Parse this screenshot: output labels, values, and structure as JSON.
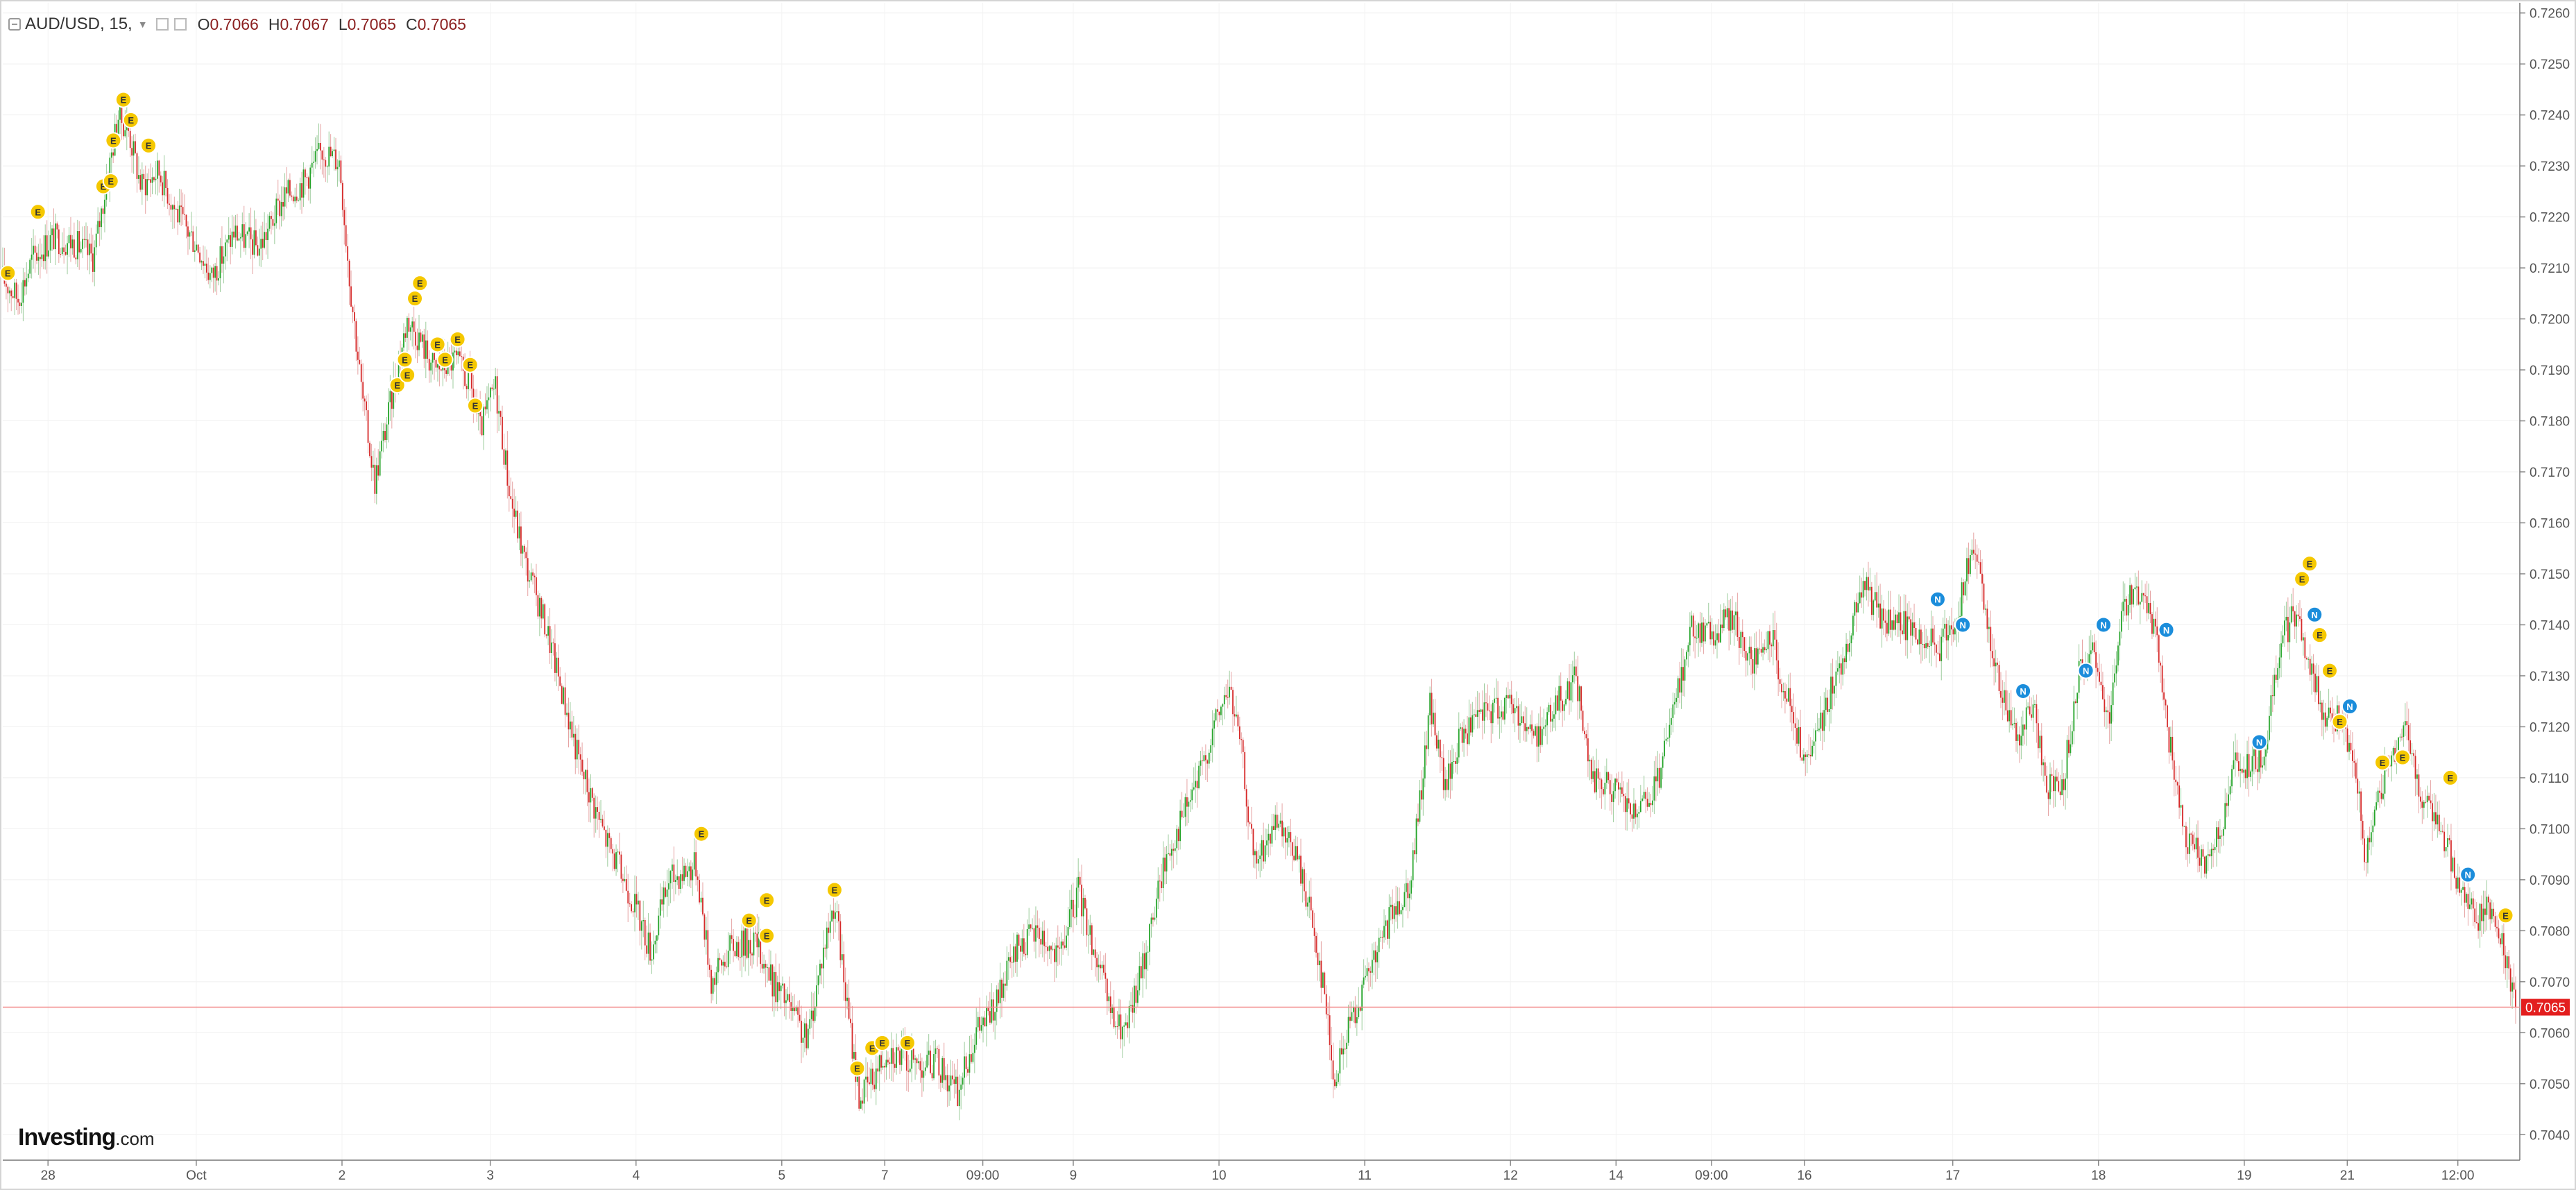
{
  "legend": {
    "symbol": "AUD/USD, 15,",
    "open_label": "O",
    "open": "0.7066",
    "high_label": "H",
    "high": "0.7067",
    "low_label": "L",
    "low": "0.7065",
    "close_label": "C",
    "close": "0.7065"
  },
  "branding": {
    "name": "Investing",
    "suffix": ".com"
  },
  "chart_data": {
    "type": "candlestick",
    "title": "AUD/USD, 15,",
    "xlabel": "",
    "ylabel": "",
    "ylim": [
      0.7035,
      0.7262
    ],
    "y_ticks": [
      "0.7260",
      "0.7250",
      "0.7240",
      "0.7230",
      "0.7220",
      "0.7210",
      "0.7200",
      "0.7190",
      "0.7180",
      "0.7170",
      "0.7160",
      "0.7150",
      "0.7140",
      "0.7130",
      "0.7120",
      "0.7110",
      "0.7100",
      "0.7090",
      "0.7080",
      "0.7070",
      "0.7060",
      "0.7050",
      "0.7040"
    ],
    "x_ticks": [
      {
        "label": "28",
        "t": 0.018
      },
      {
        "label": "Oct",
        "t": 0.077
      },
      {
        "label": "2",
        "t": 0.135
      },
      {
        "label": "3",
        "t": 0.194
      },
      {
        "label": "4",
        "t": 0.252
      },
      {
        "label": "5",
        "t": 0.31
      },
      {
        "label": "7",
        "t": 0.351
      },
      {
        "label": "09:00",
        "t": 0.39
      },
      {
        "label": "9",
        "t": 0.426
      },
      {
        "label": "10",
        "t": 0.484
      },
      {
        "label": "11",
        "t": 0.542
      },
      {
        "label": "12",
        "t": 0.6
      },
      {
        "label": "14",
        "t": 0.642
      },
      {
        "label": "09:00",
        "t": 0.68
      },
      {
        "label": "16",
        "t": 0.717
      },
      {
        "label": "17",
        "t": 0.776
      },
      {
        "label": "18",
        "t": 0.834
      },
      {
        "label": "19",
        "t": 0.892
      },
      {
        "label": "21",
        "t": 0.933
      },
      {
        "label": "12:00",
        "t": 0.977
      }
    ],
    "price_path": [
      [
        0.0,
        0.7208
      ],
      [
        0.006,
        0.7204
      ],
      [
        0.012,
        0.7212
      ],
      [
        0.02,
        0.7216
      ],
      [
        0.028,
        0.7215
      ],
      [
        0.036,
        0.7212
      ],
      [
        0.041,
        0.7226
      ],
      [
        0.046,
        0.724
      ],
      [
        0.05,
        0.7237
      ],
      [
        0.055,
        0.7226
      ],
      [
        0.062,
        0.7229
      ],
      [
        0.07,
        0.722
      ],
      [
        0.078,
        0.7214
      ],
      [
        0.083,
        0.7208
      ],
      [
        0.092,
        0.7217
      ],
      [
        0.102,
        0.7214
      ],
      [
        0.112,
        0.7224
      ],
      [
        0.12,
        0.7227
      ],
      [
        0.127,
        0.7233
      ],
      [
        0.134,
        0.7231
      ],
      [
        0.138,
        0.7208
      ],
      [
        0.143,
        0.7185
      ],
      [
        0.148,
        0.7168
      ],
      [
        0.155,
        0.7185
      ],
      [
        0.161,
        0.72
      ],
      [
        0.166,
        0.7196
      ],
      [
        0.172,
        0.719
      ],
      [
        0.18,
        0.7192
      ],
      [
        0.186,
        0.7187
      ],
      [
        0.19,
        0.7178
      ],
      [
        0.196,
        0.7187
      ],
      [
        0.202,
        0.7165
      ],
      [
        0.208,
        0.7152
      ],
      [
        0.216,
        0.714
      ],
      [
        0.222,
        0.7128
      ],
      [
        0.23,
        0.7112
      ],
      [
        0.24,
        0.7098
      ],
      [
        0.25,
        0.7087
      ],
      [
        0.258,
        0.7076
      ],
      [
        0.265,
        0.709
      ],
      [
        0.276,
        0.7093
      ],
      [
        0.282,
        0.707
      ],
      [
        0.29,
        0.7077
      ],
      [
        0.3,
        0.7078
      ],
      [
        0.306,
        0.707
      ],
      [
        0.312,
        0.7066
      ],
      [
        0.32,
        0.7058
      ],
      [
        0.326,
        0.7075
      ],
      [
        0.331,
        0.7086
      ],
      [
        0.336,
        0.7065
      ],
      [
        0.341,
        0.7047
      ],
      [
        0.347,
        0.7052
      ],
      [
        0.352,
        0.7057
      ],
      [
        0.362,
        0.7054
      ],
      [
        0.372,
        0.7054
      ],
      [
        0.38,
        0.7048
      ],
      [
        0.387,
        0.706
      ],
      [
        0.395,
        0.7065
      ],
      [
        0.404,
        0.7077
      ],
      [
        0.412,
        0.708
      ],
      [
        0.42,
        0.7074
      ],
      [
        0.428,
        0.7088
      ],
      [
        0.436,
        0.7073
      ],
      [
        0.442,
        0.7062
      ],
      [
        0.447,
        0.706
      ],
      [
        0.454,
        0.7074
      ],
      [
        0.462,
        0.7093
      ],
      [
        0.47,
        0.7103
      ],
      [
        0.476,
        0.711
      ],
      [
        0.482,
        0.712
      ],
      [
        0.488,
        0.7128
      ],
      [
        0.493,
        0.7115
      ],
      [
        0.498,
        0.7093
      ],
      [
        0.506,
        0.71
      ],
      [
        0.514,
        0.7096
      ],
      [
        0.52,
        0.7085
      ],
      [
        0.526,
        0.7068
      ],
      [
        0.53,
        0.705
      ],
      [
        0.536,
        0.7062
      ],
      [
        0.544,
        0.7072
      ],
      [
        0.552,
        0.7082
      ],
      [
        0.56,
        0.709
      ],
      [
        0.564,
        0.7105
      ],
      [
        0.568,
        0.7125
      ],
      [
        0.574,
        0.7108
      ],
      [
        0.58,
        0.7118
      ],
      [
        0.59,
        0.7123
      ],
      [
        0.6,
        0.7125
      ],
      [
        0.61,
        0.7118
      ],
      [
        0.618,
        0.7124
      ],
      [
        0.626,
        0.713
      ],
      [
        0.632,
        0.711
      ],
      [
        0.64,
        0.7108
      ],
      [
        0.65,
        0.7102
      ],
      [
        0.658,
        0.7108
      ],
      [
        0.666,
        0.7125
      ],
      [
        0.672,
        0.714
      ],
      [
        0.68,
        0.7138
      ],
      [
        0.688,
        0.7142
      ],
      [
        0.696,
        0.7132
      ],
      [
        0.704,
        0.7137
      ],
      [
        0.712,
        0.7122
      ],
      [
        0.718,
        0.7112
      ],
      [
        0.724,
        0.7122
      ],
      [
        0.732,
        0.7133
      ],
      [
        0.74,
        0.7148
      ],
      [
        0.748,
        0.7141
      ],
      [
        0.756,
        0.714
      ],
      [
        0.764,
        0.7138
      ],
      [
        0.77,
        0.7135
      ],
      [
        0.778,
        0.7142
      ],
      [
        0.784,
        0.7156
      ],
      [
        0.79,
        0.714
      ],
      [
        0.796,
        0.7125
      ],
      [
        0.802,
        0.7118
      ],
      [
        0.808,
        0.7124
      ],
      [
        0.814,
        0.7108
      ],
      [
        0.82,
        0.711
      ],
      [
        0.826,
        0.713
      ],
      [
        0.832,
        0.7134
      ],
      [
        0.838,
        0.7122
      ],
      [
        0.844,
        0.7144
      ],
      [
        0.85,
        0.7146
      ],
      [
        0.856,
        0.714
      ],
      [
        0.862,
        0.7118
      ],
      [
        0.868,
        0.7098
      ],
      [
        0.876,
        0.7094
      ],
      [
        0.882,
        0.7098
      ],
      [
        0.888,
        0.7112
      ],
      [
        0.894,
        0.7112
      ],
      [
        0.9,
        0.7115
      ],
      [
        0.906,
        0.7136
      ],
      [
        0.912,
        0.7142
      ],
      [
        0.918,
        0.7132
      ],
      [
        0.924,
        0.7122
      ],
      [
        0.93,
        0.7122
      ],
      [
        0.936,
        0.7112
      ],
      [
        0.94,
        0.7095
      ],
      [
        0.946,
        0.7108
      ],
      [
        0.952,
        0.7115
      ],
      [
        0.956,
        0.7122
      ],
      [
        0.96,
        0.711
      ],
      [
        0.966,
        0.7103
      ],
      [
        0.972,
        0.7098
      ],
      [
        0.978,
        0.7088
      ],
      [
        0.984,
        0.7082
      ],
      [
        0.99,
        0.7085
      ],
      [
        0.995,
        0.7078
      ],
      [
        1.0,
        0.7065
      ]
    ],
    "events_E": [
      [
        0.002,
        0.7209
      ],
      [
        0.014,
        0.7221
      ],
      [
        0.04,
        0.7226
      ],
      [
        0.043,
        0.7227
      ],
      [
        0.044,
        0.7235
      ],
      [
        0.048,
        0.7243
      ],
      [
        0.051,
        0.7239
      ],
      [
        0.058,
        0.7234
      ],
      [
        0.157,
        0.7187
      ],
      [
        0.16,
        0.7192
      ],
      [
        0.161,
        0.7189
      ],
      [
        0.164,
        0.7204
      ],
      [
        0.166,
        0.7207
      ],
      [
        0.173,
        0.7195
      ],
      [
        0.176,
        0.7192
      ],
      [
        0.181,
        0.7196
      ],
      [
        0.186,
        0.7191
      ],
      [
        0.188,
        0.7183
      ],
      [
        0.278,
        0.7099
      ],
      [
        0.297,
        0.7082
      ],
      [
        0.304,
        0.7086
      ],
      [
        0.304,
        0.7079
      ],
      [
        0.331,
        0.7088
      ],
      [
        0.34,
        0.7053
      ],
      [
        0.346,
        0.7057
      ],
      [
        0.35,
        0.7058
      ],
      [
        0.36,
        0.7058
      ],
      [
        0.915,
        0.7149
      ],
      [
        0.918,
        0.7152
      ],
      [
        0.922,
        0.7138
      ],
      [
        0.926,
        0.7131
      ],
      [
        0.93,
        0.7121
      ],
      [
        0.947,
        0.7113
      ],
      [
        0.955,
        0.7114
      ],
      [
        0.974,
        0.711
      ],
      [
        0.996,
        0.7083
      ]
    ],
    "events_N": [
      [
        0.77,
        0.7145
      ],
      [
        0.78,
        0.714
      ],
      [
        0.804,
        0.7127
      ],
      [
        0.829,
        0.7131
      ],
      [
        0.836,
        0.714
      ],
      [
        0.861,
        0.7139
      ],
      [
        0.898,
        0.7117
      ],
      [
        0.92,
        0.7142
      ],
      [
        0.934,
        0.7124
      ],
      [
        0.981,
        0.7091
      ]
    ],
    "last_price": "0.7065",
    "colors": {
      "up": "#26a52b",
      "down": "#d62a2a",
      "price_line": "#f28b8b",
      "badge_E": "#f5c800",
      "badge_N": "#1b8ddb"
    },
    "grid": true,
    "legend_position": "top-left"
  }
}
